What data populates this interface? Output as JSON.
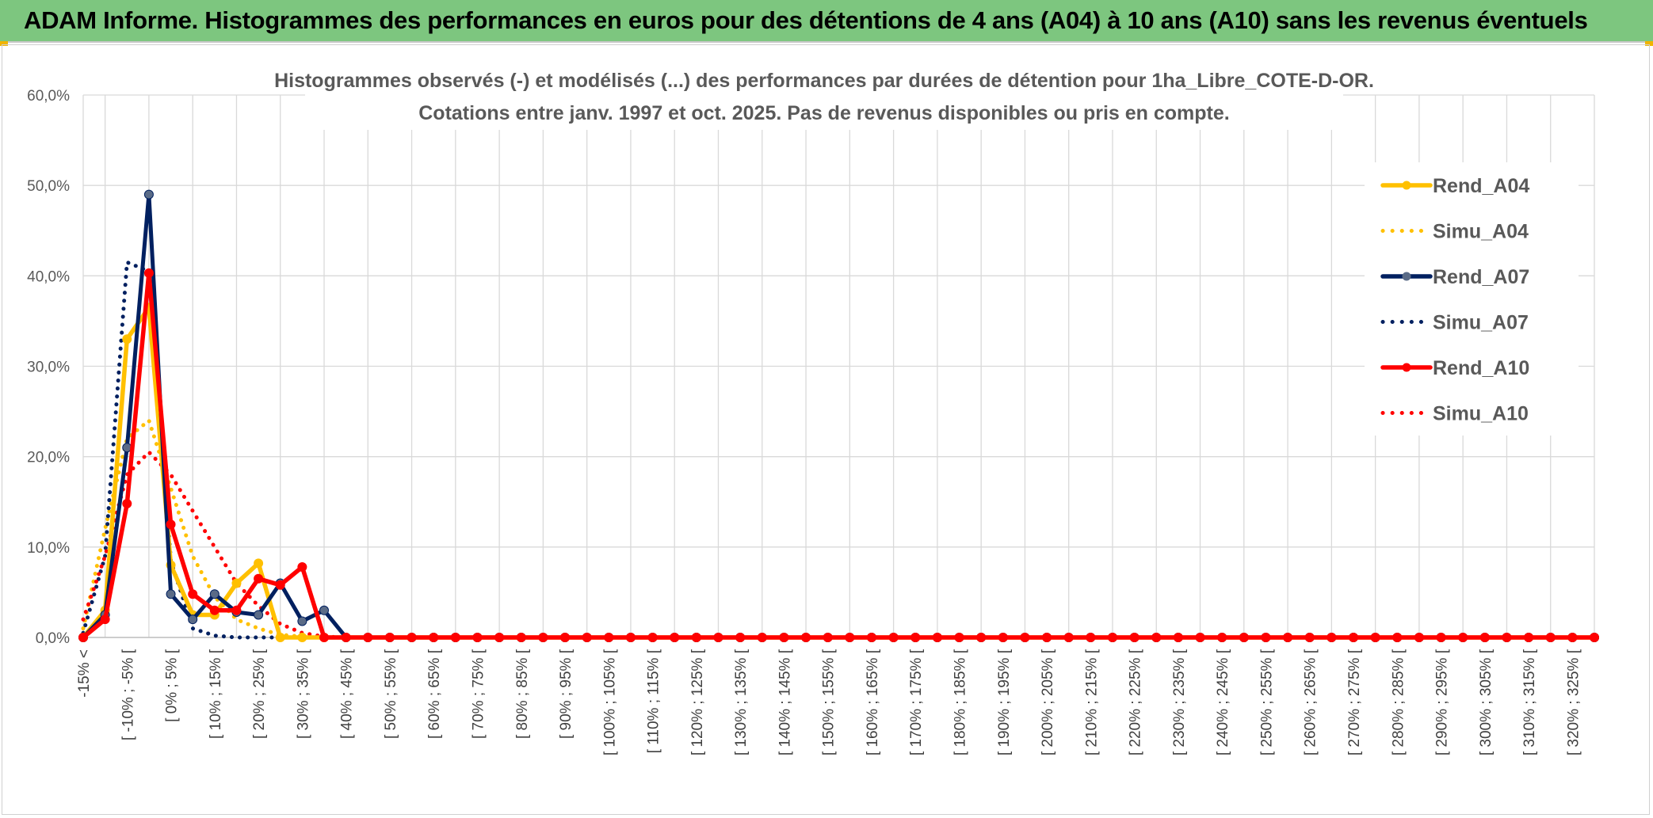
{
  "banner": {
    "title": "ADAM Informe. Histogrammes des performances en euros pour des détentions de 4 ans (A04) à 10 ans (A10) sans les revenus éventuels"
  },
  "chart_data": {
    "type": "line",
    "title": "Histogrammes observés (-) et modélisés (...) des performances par durées de détention pour 1ha_Libre_COTE-D-OR.",
    "subtitle": "Cotations entre janv. 1997 et oct. 2025. Pas de revenus disponibles ou pris en compte.",
    "xlabel": "",
    "ylabel": "",
    "ylim": [
      0,
      60
    ],
    "yticks": [
      "0,0%",
      "10,0%",
      "20,0%",
      "30,0%",
      "40,0%",
      "50,0%",
      "60,0%"
    ],
    "grid": true,
    "legend_position": "right",
    "x_tick_labels": [
      "-15% <",
      "[ -10% ; -5% [",
      "[ 0% ; 5% [",
      "[ 10% ; 15% [",
      "[ 20% ; 25% [",
      "[ 30% ; 35% [",
      "[ 40% ; 45% [",
      "[ 50% ; 55% [",
      "[ 60% ; 65% [",
      "[ 70% ; 75% [",
      "[ 80% ; 85% [",
      "[ 90% ; 95% [",
      "[ 100% ; 105% [",
      "[ 110% ; 115% [",
      "[ 120% ; 125% [",
      "[ 130% ; 135% [",
      "[ 140% ; 145% [",
      "[ 150% ; 155% [",
      "[ 160% ; 165% [",
      "[ 170% ; 175% [",
      "[ 180% ; 185% [",
      "[ 190% ; 195% [",
      "[ 200% ; 205% [",
      "[ 210% ; 215% [",
      "[ 220% ; 225% [",
      "[ 230% ; 235% [",
      "[ 240% ; 245% [",
      "[ 250% ; 255% [",
      "[ 260% ; 265% [",
      "[ 270% ; 275% [",
      "[ 280% ; 285% [",
      "[ 290% ; 295% [",
      "[ 300% ; 305% [",
      "[ 310% ; 315% [",
      "[ 320% ; 325% ["
    ],
    "x_tick_every": 2,
    "num_categories": 70,
    "series": [
      {
        "name": "Rend_A04",
        "color": "#ffc000",
        "style": "solid",
        "markers": true,
        "values": [
          0.0,
          3.0,
          33.0,
          36.5,
          8.0,
          2.5,
          2.5,
          6.0,
          8.2,
          0.0,
          0.0,
          0.0,
          0,
          0,
          0,
          0,
          0,
          0,
          0,
          0,
          0,
          0,
          0,
          0,
          0,
          0,
          0,
          0,
          0,
          0,
          0,
          0,
          0,
          0,
          0,
          0,
          0,
          0,
          0,
          0,
          0,
          0,
          0,
          0,
          0,
          0,
          0,
          0,
          0,
          0,
          0,
          0,
          0,
          0,
          0,
          0,
          0,
          0,
          0,
          0,
          0,
          0,
          0,
          0,
          0,
          0,
          0,
          0,
          0,
          0
        ]
      },
      {
        "name": "Simu_A04",
        "color": "#ffc000",
        "style": "dotted",
        "markers": false,
        "values": [
          1.0,
          12.0,
          22.0,
          24.0,
          16.5,
          9.0,
          4.5,
          2.0,
          1.0,
          0.3,
          0.1,
          0.0,
          0,
          0,
          0,
          0,
          0,
          0,
          0,
          0,
          0,
          0,
          0,
          0,
          0,
          0,
          0,
          0,
          0,
          0,
          0,
          0,
          0,
          0,
          0,
          0,
          0,
          0,
          0,
          0,
          0,
          0,
          0,
          0,
          0,
          0,
          0,
          0,
          0,
          0,
          0,
          0,
          0,
          0,
          0,
          0,
          0,
          0,
          0,
          0,
          0,
          0,
          0,
          0,
          0,
          0,
          0,
          0,
          0,
          0
        ]
      },
      {
        "name": "Rend_A07",
        "color": "#002060",
        "style": "solid",
        "markers": true,
        "values": [
          0.0,
          2.5,
          21.0,
          49.0,
          4.8,
          2.0,
          4.8,
          2.8,
          2.5,
          6.0,
          1.8,
          3.0,
          0,
          0,
          0,
          0,
          0,
          0,
          0,
          0,
          0,
          0,
          0,
          0,
          0,
          0,
          0,
          0,
          0,
          0,
          0,
          0,
          0,
          0,
          0,
          0,
          0,
          0,
          0,
          0,
          0,
          0,
          0,
          0,
          0,
          0,
          0,
          0,
          0,
          0,
          0,
          0,
          0,
          0,
          0,
          0,
          0,
          0,
          0,
          0,
          0,
          0,
          0,
          0,
          0,
          0,
          0,
          0,
          0,
          0
        ]
      },
      {
        "name": "Simu_A07",
        "color": "#002060",
        "style": "dotted",
        "markers": false,
        "values": [
          0.5,
          9.0,
          41.5,
          40.5,
          8.5,
          1.0,
          0.2,
          0.0,
          0.0,
          0.0,
          0.0,
          0.0,
          0,
          0,
          0,
          0,
          0,
          0,
          0,
          0,
          0,
          0,
          0,
          0,
          0,
          0,
          0,
          0,
          0,
          0,
          0,
          0,
          0,
          0,
          0,
          0,
          0,
          0,
          0,
          0,
          0,
          0,
          0,
          0,
          0,
          0,
          0,
          0,
          0,
          0,
          0,
          0,
          0,
          0,
          0,
          0,
          0,
          0,
          0,
          0,
          0,
          0,
          0,
          0,
          0,
          0,
          0,
          0,
          0,
          0
        ]
      },
      {
        "name": "Rend_A10",
        "color": "#ff0000",
        "style": "solid",
        "markers": true,
        "values": [
          0.0,
          2.0,
          14.8,
          40.3,
          12.5,
          4.8,
          3.0,
          3.0,
          6.5,
          5.8,
          7.8,
          0.0,
          0,
          0,
          0,
          0,
          0,
          0,
          0,
          0,
          0,
          0,
          0,
          0,
          0,
          0,
          0,
          0,
          0,
          0,
          0,
          0,
          0,
          0,
          0,
          0,
          0,
          0,
          0,
          0,
          0,
          0,
          0,
          0,
          0,
          0,
          0,
          0,
          0,
          0,
          0,
          0,
          0,
          0,
          0,
          0,
          0,
          0,
          0,
          0,
          0,
          0,
          0,
          0,
          0,
          0,
          0,
          0,
          0,
          0
        ]
      },
      {
        "name": "Simu_A10",
        "color": "#ff0000",
        "style": "dotted",
        "markers": false,
        "values": [
          2.0,
          9.0,
          18.0,
          20.5,
          18.0,
          14.0,
          10.0,
          6.0,
          3.5,
          1.5,
          0.5,
          0.1,
          0,
          0,
          0,
          0,
          0,
          0,
          0,
          0,
          0,
          0,
          0,
          0,
          0,
          0,
          0,
          0,
          0,
          0,
          0,
          0,
          0,
          0,
          0,
          0,
          0,
          0,
          0,
          0,
          0,
          0,
          0,
          0,
          0,
          0,
          0,
          0,
          0,
          0,
          0,
          0,
          0,
          0,
          0,
          0,
          0,
          0,
          0,
          0,
          0,
          0,
          0,
          0,
          0,
          0,
          0,
          0,
          0,
          0
        ]
      }
    ]
  }
}
